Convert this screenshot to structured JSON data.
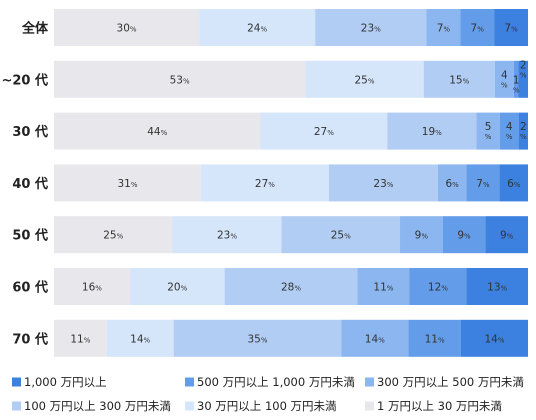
{
  "chart_data": {
    "type": "bar",
    "horizontal": true,
    "stacked": true,
    "normalized_100": true,
    "categories": [
      "全体",
      "~20 代",
      "30 代",
      "40 代",
      "50 代",
      "60 代",
      "70 代"
    ],
    "series": [
      {
        "name": "1 万円以上 30 万円未満",
        "values": [
          30,
          53,
          44,
          31,
          25,
          16,
          11
        ],
        "color": "#e8e8ec"
      },
      {
        "name": "30 万円以上 100 万円未満",
        "values": [
          24,
          25,
          27,
          27,
          23,
          20,
          14
        ],
        "color": "#d5e5fa"
      },
      {
        "name": "100 万円以上 300 万円未満",
        "values": [
          23,
          15,
          19,
          23,
          25,
          28,
          35
        ],
        "color": "#b1cdf4"
      },
      {
        "name": "300 万円以上 500 万円未満",
        "values": [
          7,
          4,
          5,
          6,
          9,
          11,
          14
        ],
        "color": "#8bb6ef"
      },
      {
        "name": "500 万円以上 1,000 万円未満",
        "values": [
          7,
          1,
          4,
          7,
          9,
          12,
          11
        ],
        "color": "#639de9"
      },
      {
        "name": "1,000 万円以上",
        "values": [
          7,
          2,
          2,
          6,
          9,
          13,
          14
        ],
        "color": "#3c81df"
      }
    ],
    "value_unit": "%",
    "xlim": [
      0,
      100
    ],
    "grid": false,
    "legend": {
      "placement": "bottom"
    }
  }
}
